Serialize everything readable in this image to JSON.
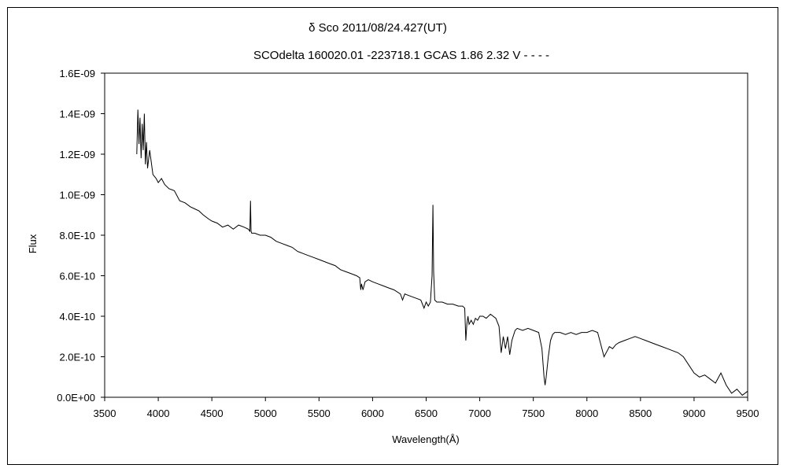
{
  "chart_data": {
    "type": "line",
    "title": "δ Sco 2011/08/24.427(UT)",
    "subtitle": "SCOdelta 160020.01 -223718.1 GCAS 1.86 2.32 V - - - -",
    "xlabel": "Wavelength(Å)",
    "ylabel": "Flux",
    "xlim": [
      3500,
      9500
    ],
    "ylim": [
      0,
      1.6e-09
    ],
    "x_ticks": [
      "3500",
      "4000",
      "4500",
      "5000",
      "5500",
      "6000",
      "6500",
      "7000",
      "7500",
      "8000",
      "8500",
      "9000",
      "9500"
    ],
    "y_ticks": [
      "0.0E+00",
      "2.0E-10",
      "4.0E-10",
      "6.0E-10",
      "8.0E-10",
      "1.0E-09",
      "1.2E-09",
      "1.4E-09",
      "1.6E-09"
    ],
    "grid": false,
    "legend": "none",
    "series": [
      {
        "line_color": "#000000",
        "x": [
          3800,
          3810,
          3820,
          3830,
          3840,
          3850,
          3860,
          3870,
          3880,
          3890,
          3900,
          3920,
          3950,
          3980,
          4000,
          4030,
          4060,
          4100,
          4150,
          4200,
          4250,
          4300,
          4340,
          4380,
          4420,
          4470,
          4500,
          4550,
          4600,
          4650,
          4700,
          4750,
          4800,
          4840,
          4855,
          4861,
          4866,
          4872,
          4900,
          4950,
          5000,
          5050,
          5100,
          5150,
          5200,
          5250,
          5300,
          5350,
          5400,
          5450,
          5500,
          5550,
          5600,
          5650,
          5700,
          5750,
          5800,
          5850,
          5880,
          5890,
          5896,
          5910,
          5930,
          5960,
          6000,
          6050,
          6100,
          6150,
          6200,
          6260,
          6280,
          6300,
          6350,
          6400,
          6450,
          6480,
          6500,
          6520,
          6540,
          6555,
          6563,
          6570,
          6580,
          6600,
          6650,
          6700,
          6750,
          6800,
          6840,
          6860,
          6870,
          6880,
          6890,
          6900,
          6920,
          6940,
          6960,
          6980,
          7000,
          7030,
          7060,
          7100,
          7150,
          7180,
          7200,
          7220,
          7240,
          7260,
          7280,
          7300,
          7330,
          7350,
          7400,
          7450,
          7500,
          7550,
          7580,
          7600,
          7610,
          7620,
          7640,
          7660,
          7680,
          7700,
          7750,
          7800,
          7850,
          7900,
          7950,
          8000,
          8050,
          8100,
          8130,
          8160,
          8190,
          8210,
          8240,
          8270,
          8300,
          8350,
          8400,
          8450,
          8500,
          8550,
          8600,
          8650,
          8700,
          8750,
          8800,
          8850,
          8900,
          8950,
          9000,
          9050,
          9100,
          9150,
          9200,
          9250,
          9300,
          9350,
          9400,
          9450,
          9500
        ],
        "y": [
          1.2e-09,
          1.42e-09,
          1.25e-09,
          1.38e-09,
          1.18e-09,
          1.35e-09,
          1.22e-09,
          1.4e-09,
          1.15e-09,
          1.26e-09,
          1.13e-09,
          1.22e-09,
          1.1e-09,
          1.08e-09,
          1.06e-09,
          1.08e-09,
          1.05e-09,
          1.03e-09,
          1.02e-09,
          9.7e-10,
          9.6e-10,
          9.4e-10,
          9.3e-10,
          9.2e-10,
          9e-10,
          8.8e-10,
          8.7e-10,
          8.6e-10,
          8.4e-10,
          8.5e-10,
          8.3e-10,
          8.5e-10,
          8.4e-10,
          8.3e-10,
          8.2e-10,
          9.7e-10,
          8.2e-10,
          8.1e-10,
          8.1e-10,
          8e-10,
          8e-10,
          7.9e-10,
          7.7e-10,
          7.6e-10,
          7.5e-10,
          7.4e-10,
          7.2e-10,
          7.1e-10,
          7e-10,
          6.9e-10,
          6.8e-10,
          6.7e-10,
          6.6e-10,
          6.5e-10,
          6.3e-10,
          6.2e-10,
          6.1e-10,
          6e-10,
          5.9e-10,
          5.3e-10,
          5.6e-10,
          5.3e-10,
          5.7e-10,
          5.8e-10,
          5.7e-10,
          5.6e-10,
          5.5e-10,
          5.4e-10,
          5.3e-10,
          5.1e-10,
          4.8e-10,
          5.1e-10,
          5e-10,
          4.9e-10,
          4.8e-10,
          4.4e-10,
          4.7e-10,
          4.5e-10,
          4.7e-10,
          6e-10,
          9.5e-10,
          6.2e-10,
          4.8e-10,
          4.7e-10,
          4.7e-10,
          4.6e-10,
          4.6e-10,
          4.5e-10,
          4.5e-10,
          4.4e-10,
          2.8e-10,
          3.6e-10,
          4e-10,
          3.6e-10,
          3.8e-10,
          3.6e-10,
          3.9e-10,
          3.8e-10,
          4e-10,
          4e-10,
          3.9e-10,
          4.1e-10,
          3.9e-10,
          3.5e-10,
          2.2e-10,
          3e-10,
          2.4e-10,
          3e-10,
          2.1e-10,
          2.8e-10,
          3.3e-10,
          3.4e-10,
          3.3e-10,
          3.4e-10,
          3.3e-10,
          3.2e-10,
          2.4e-10,
          1e-10,
          6e-11,
          1e-10,
          2e-10,
          2.8e-10,
          3.1e-10,
          3.2e-10,
          3.2e-10,
          3.1e-10,
          3.2e-10,
          3.1e-10,
          3.2e-10,
          3.2e-10,
          3.3e-10,
          3.2e-10,
          2.6e-10,
          2e-10,
          2.3e-10,
          2.5e-10,
          2.4e-10,
          2.6e-10,
          2.7e-10,
          2.8e-10,
          2.9e-10,
          3e-10,
          2.9e-10,
          2.8e-10,
          2.7e-10,
          2.6e-10,
          2.5e-10,
          2.4e-10,
          2.3e-10,
          2.2e-10,
          2e-10,
          1.6e-10,
          1.2e-10,
          1e-10,
          1.1e-10,
          9e-11,
          7e-11,
          1.2e-10,
          6e-11,
          2e-11,
          4e-11,
          1e-11,
          3e-11
        ]
      }
    ]
  }
}
